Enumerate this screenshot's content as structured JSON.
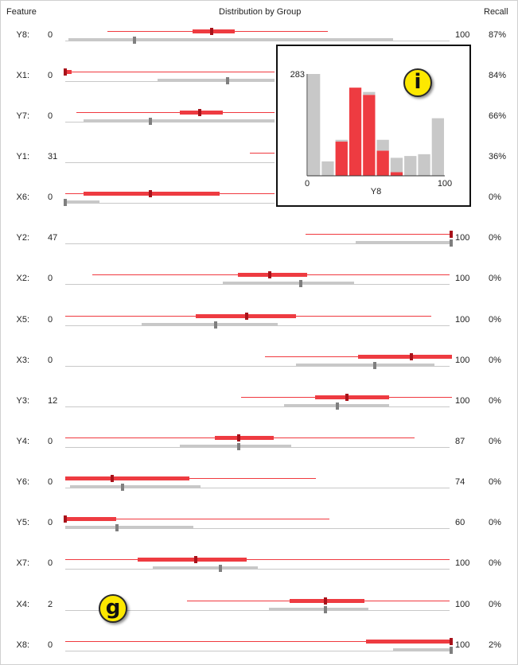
{
  "headers": {
    "feature": "Feature",
    "distribution": "Distribution by Group",
    "recall": "Recall"
  },
  "colors": {
    "red": "#ee3b41",
    "red_median": "#a8121a",
    "gray": "#c8c8c8",
    "gray_median": "#7f7f7f",
    "badge": "#fde800"
  },
  "rows": [
    {
      "name": "Y8:",
      "min": "0",
      "max": "100",
      "recall": "87%"
    },
    {
      "name": "X1:",
      "min": "0",
      "max": "",
      "recall": "84%"
    },
    {
      "name": "Y7:",
      "min": "0",
      "max": "",
      "recall": "66%"
    },
    {
      "name": "Y1:",
      "min": "31",
      "max": "",
      "recall": "36%"
    },
    {
      "name": "X6:",
      "min": "0",
      "max": "",
      "recall": "0%"
    },
    {
      "name": "Y2:",
      "min": "47",
      "max": "100",
      "recall": "0%"
    },
    {
      "name": "X2:",
      "min": "0",
      "max": "100",
      "recall": "0%"
    },
    {
      "name": "X5:",
      "min": "0",
      "max": "100",
      "recall": "0%"
    },
    {
      "name": "X3:",
      "min": "0",
      "max": "100",
      "recall": "0%"
    },
    {
      "name": "Y3:",
      "min": "12",
      "max": "100",
      "recall": "0%"
    },
    {
      "name": "Y4:",
      "min": "0",
      "max": "87",
      "recall": "0%"
    },
    {
      "name": "Y6:",
      "min": "0",
      "max": "74",
      "recall": "0%"
    },
    {
      "name": "Y5:",
      "min": "0",
      "max": "60",
      "recall": "0%"
    },
    {
      "name": "X7:",
      "min": "0",
      "max": "100",
      "recall": "0%"
    },
    {
      "name": "X4:",
      "min": "2",
      "max": "100",
      "recall": "0%"
    },
    {
      "name": "X8:",
      "min": "0",
      "max": "100",
      "recall": "2%"
    }
  ],
  "badges": {
    "info": "i",
    "group": "g"
  },
  "chart_data": {
    "type": "bar",
    "xlabel": "Y8",
    "xlim": [
      0,
      100
    ],
    "x_ticks": [
      "0",
      "100"
    ],
    "y_max_label": "283",
    "ylim": [
      0,
      283
    ],
    "bins": 10,
    "series": [
      {
        "values": [
          283,
          40,
          0,
          0,
          0,
          0,
          0,
          0,
          0,
          0
        ]
      },
      {
        "values": [
          0,
          0,
          95,
          245,
          225,
          70,
          10,
          0,
          0,
          0
        ]
      },
      {
        "values": [
          0,
          0,
          5,
          0,
          8,
          30,
          40,
          55,
          60,
          160
        ]
      }
    ]
  }
}
